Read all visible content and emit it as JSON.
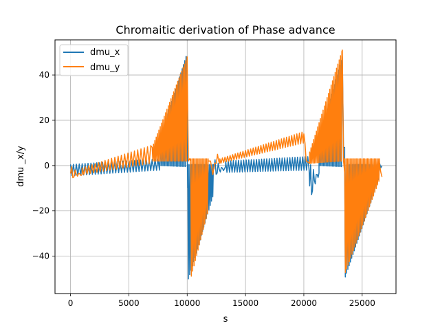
{
  "chart_data": {
    "type": "line",
    "title": "Chromaitic derivation of Phase advance",
    "xlabel": "s",
    "ylabel": "dmu _x/y",
    "xlim": [
      -1330,
      27900
    ],
    "ylim": [
      -56.5,
      55.5
    ],
    "grid": true,
    "legend_position": "top-left",
    "x_ticks": [
      0,
      5000,
      10000,
      15000,
      20000,
      25000
    ],
    "x_tick_labels": [
      "0",
      "5000",
      "10000",
      "15000",
      "20000",
      "25000"
    ],
    "y_ticks": [
      -40,
      -20,
      0,
      20,
      40
    ],
    "y_tick_labels": [
      "−40",
      "−20",
      "0",
      "20",
      "40"
    ],
    "series": [
      {
        "name": "dmu_x",
        "color": "#1f77b4",
        "segments": [
          {
            "x0": 0,
            "x1": 7700,
            "env_start": [
              0,
              -4.5,
              0.5
            ],
            "env_end": [
              1,
              -2,
              3
            ],
            "period": 250
          },
          {
            "x0": 7700,
            "x1": 9950,
            "env_start": [
              1,
              0,
              12
            ],
            "env_end": [
              1,
              -0.5,
              49
            ],
            "period": 110
          },
          {
            "x0": 9950,
            "x1": 10050,
            "pts": [
              [
                9950,
                48
              ],
              [
                10000,
                8
              ],
              [
                10050,
                -10
              ]
            ]
          },
          {
            "x0": 10050,
            "x1": 12300,
            "env_start": [
              1,
              -51,
              0.5
            ],
            "env_end": [
              1,
              -12,
              0.5
            ],
            "period": 110
          },
          {
            "x0": 12300,
            "x1": 13300,
            "env_start": [
              0,
              -6,
              3
            ],
            "env_end": [
              0,
              -5,
              2
            ],
            "period": 180
          },
          {
            "x0": 13300,
            "x1": 20500,
            "env_start": [
              1,
              -3,
              2
            ],
            "env_end": [
              1,
              -2,
              4
            ],
            "period": 220
          },
          {
            "x0": 20500,
            "x1": 21300,
            "env_start": [
              0,
              -19,
              1
            ],
            "env_end": [
              0,
              -9,
              2
            ],
            "period": 160
          },
          {
            "x0": 21300,
            "x1": 23300,
            "env_start": [
              1,
              0,
              10
            ],
            "env_end": [
              1,
              -0.5,
              49
            ],
            "period": 110
          },
          {
            "x0": 23300,
            "x1": 23500,
            "pts": [
              [
                23300,
                48
              ],
              [
                23400,
                8
              ],
              [
                23500,
                8
              ],
              [
                23500,
                -3
              ]
            ]
          },
          {
            "x0": 23500,
            "x1": 26500,
            "env_start": [
              1,
              -50,
              0.5
            ],
            "env_end": [
              1,
              -5,
              0.5
            ],
            "period": 110
          },
          {
            "x0": 26500,
            "x1": 26700,
            "pts": [
              [
                26500,
                1
              ],
              [
                26600,
                -1
              ],
              [
                26700,
                0
              ]
            ]
          }
        ]
      },
      {
        "name": "dmu_y",
        "color": "#ff7f0e",
        "segments": [
          {
            "x0": 0,
            "x1": 1000,
            "env_start": [
              0,
              -7,
              0
            ],
            "env_end": [
              0,
              -6,
              -2
            ],
            "period": 200
          },
          {
            "x0": 1000,
            "x1": 7000,
            "env_start": [
              0,
              -4,
              -1
            ],
            "env_end": [
              1,
              1,
              9
            ],
            "period": 280
          },
          {
            "x0": 7000,
            "x1": 10000,
            "env_start": [
              1,
              2,
              8
            ],
            "env_end": [
              1,
              2,
              48
            ],
            "period": 115
          },
          {
            "x0": 10000,
            "x1": 10300,
            "pts": [
              [
                10000,
                48
              ],
              [
                10100,
                2
              ],
              [
                10200,
                3
              ],
              [
                10300,
                2
              ]
            ]
          },
          {
            "x0": 10300,
            "x1": 11800,
            "env_start": [
              1,
              -50,
              3
            ],
            "env_end": [
              1,
              -20,
              3
            ],
            "period": 115
          },
          {
            "x0": 11800,
            "x1": 12800,
            "pts": [
              [
                11800,
                2
              ],
              [
                12000,
                2
              ],
              [
                12200,
                -4
              ],
              [
                12350,
                1
              ],
              [
                12500,
                1
              ],
              [
                12600,
                5
              ],
              [
                12700,
                2
              ],
              [
                12800,
                1
              ]
            ]
          },
          {
            "x0": 12800,
            "x1": 20000,
            "env_start": [
              1,
              1,
              3
            ],
            "env_end": [
              1,
              10,
              15
            ],
            "period": 220
          },
          {
            "x0": 20000,
            "x1": 20500,
            "pts": [
              [
                20000,
                14
              ],
              [
                20100,
                10
              ],
              [
                20200,
                2
              ],
              [
                20500,
                1
              ]
            ]
          },
          {
            "x0": 20500,
            "x1": 23300,
            "env_start": [
              1,
              1,
              6
            ],
            "env_end": [
              1,
              2,
              51
            ],
            "period": 115
          },
          {
            "x0": 23300,
            "x1": 23500,
            "pts": [
              [
                23300,
                51
              ],
              [
                23400,
                2
              ],
              [
                23500,
                -3
              ]
            ]
          },
          {
            "x0": 23500,
            "x1": 26500,
            "env_start": [
              1,
              -48,
              3
            ],
            "env_end": [
              1,
              -6,
              3
            ],
            "period": 115
          },
          {
            "x0": 26500,
            "x1": 26700,
            "pts": [
              [
                26500,
                0
              ],
              [
                26600,
                -3
              ],
              [
                26700,
                -5
              ]
            ]
          }
        ]
      }
    ]
  }
}
